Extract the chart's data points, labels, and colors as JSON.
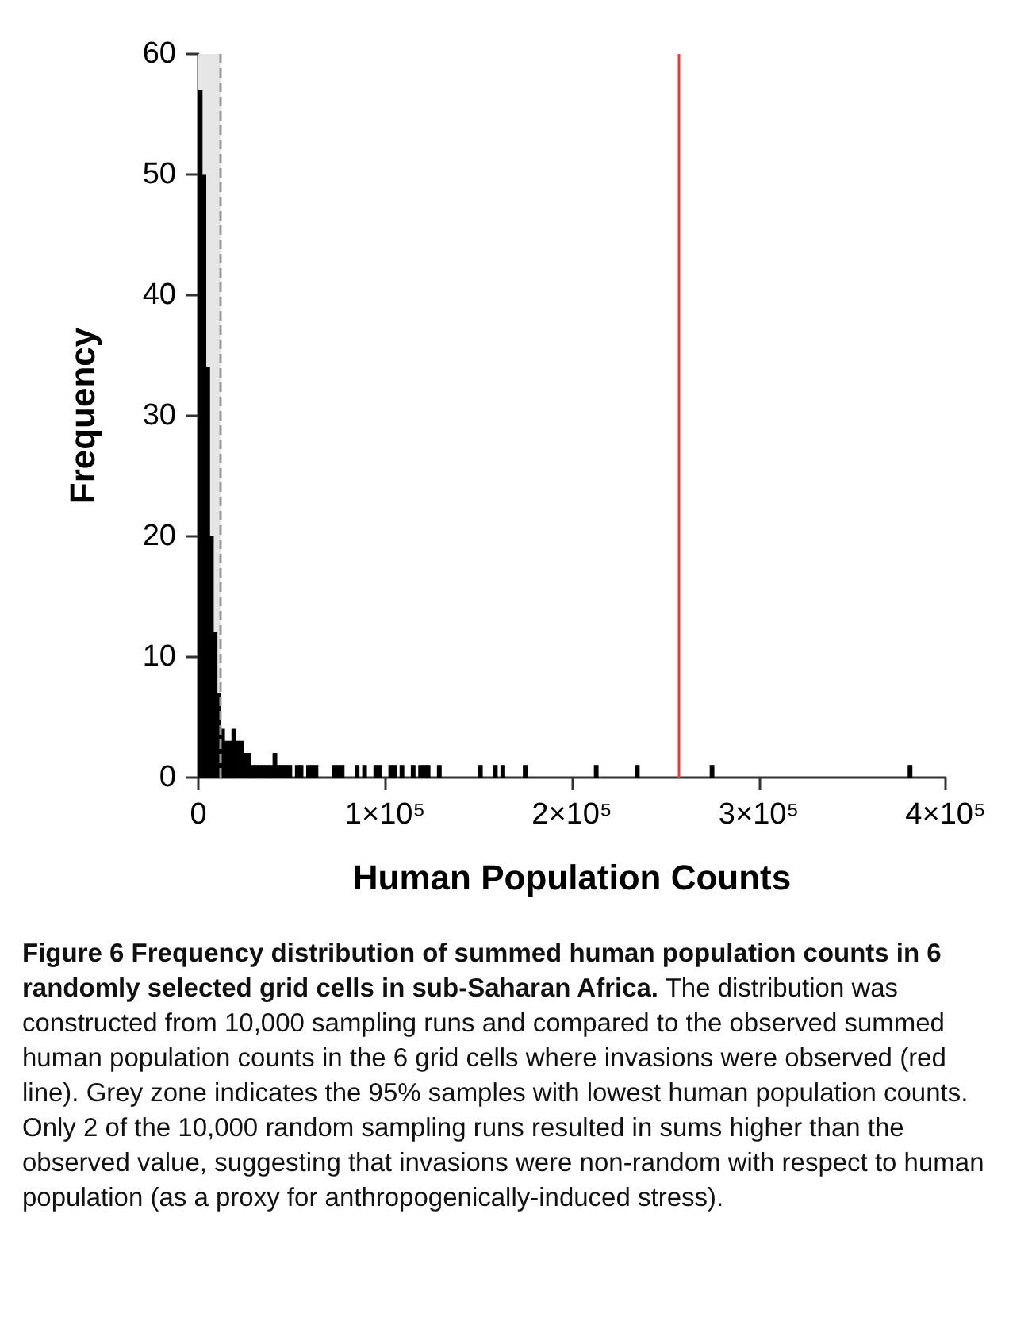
{
  "chart_data": {
    "type": "histogram",
    "xlabel": "Human Population Counts",
    "ylabel": "Frequency",
    "color": "#000000",
    "bins": [
      0,
      2000,
      4000,
      6000,
      8000,
      10000,
      12000,
      14000,
      16000,
      18000,
      20000,
      22000,
      24000,
      26000,
      28000,
      30000,
      32000,
      34000,
      36000,
      38000,
      40000,
      42000,
      44000,
      46000,
      48000,
      50000,
      52000,
      54000,
      56000,
      58000,
      60000,
      62000,
      64000,
      66000,
      68000,
      70000,
      72000,
      74000,
      76000,
      78000,
      80000,
      82000,
      84000,
      86000,
      88000,
      90000,
      92000,
      94000,
      96000,
      98000,
      100000,
      102000,
      104000,
      106000,
      108000,
      110000,
      112000,
      114000,
      116000,
      118000,
      120000,
      122000,
      124000,
      126000,
      128000,
      130000,
      132000,
      134000,
      136000,
      138000,
      140000,
      142000,
      144000,
      146000,
      148000,
      150000,
      152000,
      154000,
      156000,
      158000,
      160000,
      162000,
      164000,
      166000,
      168000,
      170000,
      172000,
      174000,
      176000,
      178000,
      180000,
      182000,
      184000,
      186000,
      188000,
      190000,
      192000,
      194000,
      196000,
      198000,
      200000,
      202000,
      204000,
      206000,
      208000,
      210000,
      212000,
      214000,
      216000,
      218000,
      220000,
      222000,
      224000,
      226000,
      228000,
      230000,
      232000,
      234000,
      236000,
      238000,
      240000,
      242000,
      244000,
      246000,
      248000,
      250000,
      252000,
      254000,
      256000,
      258000,
      260000,
      262000,
      264000,
      266000,
      268000,
      270000,
      272000,
      274000,
      276000,
      278000,
      280000,
      282000,
      284000,
      286000,
      288000,
      290000,
      292000,
      294000,
      296000,
      298000,
      300000,
      302000,
      304000,
      306000,
      308000,
      310000,
      312000,
      314000,
      316000,
      318000,
      320000,
      322000,
      324000,
      326000,
      328000,
      330000,
      332000,
      334000,
      336000,
      338000,
      340000,
      342000,
      344000,
      346000,
      348000,
      350000,
      352000,
      354000,
      356000,
      358000,
      360000,
      362000,
      364000,
      366000,
      368000,
      370000,
      372000,
      374000,
      376000,
      378000,
      380000,
      382000
    ],
    "values": [
      57,
      50,
      34,
      20,
      12,
      7,
      4,
      3,
      3,
      4,
      3,
      3,
      2,
      2,
      1,
      1,
      1,
      1,
      1,
      1,
      2,
      1,
      1,
      1,
      1,
      0,
      1,
      1,
      0,
      1,
      1,
      1,
      0,
      0,
      0,
      0,
      1,
      1,
      1,
      0,
      0,
      0,
      1,
      0,
      1,
      0,
      0,
      1,
      1,
      0,
      0,
      1,
      1,
      0,
      1,
      0,
      0,
      1,
      0,
      1,
      1,
      1,
      0,
      0,
      1,
      0,
      0,
      0,
      0,
      0,
      0,
      0,
      0,
      0,
      0,
      1,
      0,
      0,
      0,
      1,
      0,
      1,
      0,
      0,
      0,
      0,
      0,
      1,
      0,
      0,
      0,
      0,
      0,
      0,
      0,
      0,
      0,
      0,
      0,
      0,
      0,
      0,
      0,
      0,
      0,
      0,
      1,
      0,
      0,
      0,
      0,
      0,
      0,
      0,
      0,
      0,
      0,
      1,
      0,
      0,
      0,
      0,
      0,
      0,
      0,
      0,
      0,
      0,
      0,
      0,
      0,
      0,
      0,
      0,
      0,
      0,
      0,
      1,
      0,
      0,
      0,
      0,
      0,
      0,
      0,
      0,
      0,
      0,
      0,
      0,
      0,
      0,
      0,
      0,
      0,
      0,
      0,
      0,
      0,
      0,
      0,
      0,
      0,
      0,
      0,
      0,
      0,
      0,
      0,
      0,
      0,
      0,
      0,
      0,
      0,
      0,
      0,
      0,
      0,
      0,
      0,
      0,
      0,
      0,
      0,
      0,
      0,
      0,
      0,
      0,
      1
    ],
    "xlim": [
      0,
      400000
    ],
    "xticks": [
      0,
      {
        "value": 100000,
        "label": "1×10⁵"
      },
      {
        "value": 200000,
        "label": "2×10⁵"
      },
      {
        "value": 300000,
        "label": "3×10⁵"
      },
      {
        "value": 400000,
        "label": "4×10⁵"
      }
    ],
    "ylim": [
      0,
      60
    ],
    "yticks": [
      0,
      10,
      20,
      30,
      40,
      50,
      60
    ],
    "bands": [
      {
        "axis": "x",
        "from": 0,
        "to": 12000,
        "color": "#e6e6e6"
      }
    ],
    "ref_lines": [
      {
        "axis": "x",
        "value": 12000,
        "color": "#999999",
        "line_style": "dashed"
      },
      {
        "axis": "x",
        "value": 257000,
        "color": "#ff3333",
        "line_style": "solid"
      }
    ],
    "annotations": [
      "Figure 6 Frequency distribution of summed human population counts in 6 randomly selected grid cells in sub-Saharan Africa.",
      "The distribution was constructed from 10,000 sampling runs and compared to the observed summed human population counts in the 6 grid cells where invasions were observed (red line). Grey zone indicates the 95% samples with lowest human population counts. Only 2 of the 10,000 random sampling runs resulted in sums higher than the observed value, suggesting that invasions were non-random with respect to human population (as a proxy for anthropogenically-induced stress)."
    ]
  }
}
